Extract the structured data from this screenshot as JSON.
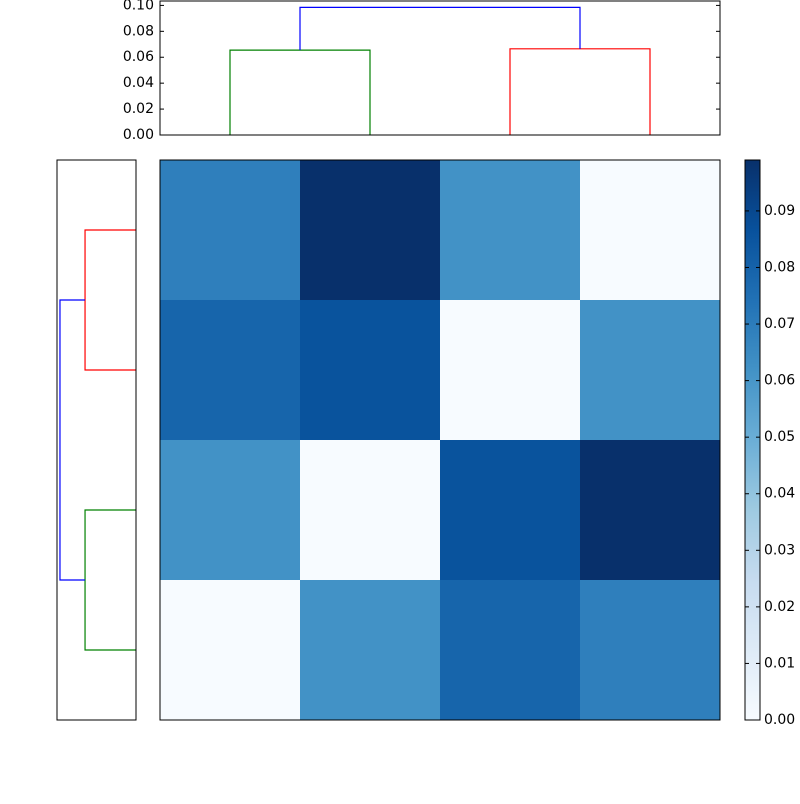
{
  "chart_data": [
    {
      "type": "dendrogram",
      "orientation": "top",
      "links": [
        {
          "children": [
            0,
            1
          ],
          "height": 0.0655,
          "color": "#008000"
        },
        {
          "children": [
            2,
            3
          ],
          "height": 0.0665,
          "color": "#ff0000"
        },
        {
          "children": [
            4,
            5
          ],
          "height": 0.0985,
          "color": "#0000ff"
        }
      ],
      "ylim": [
        0,
        0.1034
      ],
      "yticks": [
        {
          "value": 0,
          "label": "0.00"
        },
        {
          "value": 0.02,
          "label": "0.02"
        },
        {
          "value": 0.04,
          "label": "0.04"
        },
        {
          "value": 0.06,
          "label": "0.06"
        },
        {
          "value": 0.08,
          "label": "0.08"
        },
        {
          "value": 0.1,
          "label": "0.10"
        }
      ]
    },
    {
      "type": "heatmap",
      "colormap": "Blues",
      "values": [
        [
          0.069,
          0.099,
          0.062,
          0
        ],
        [
          0.079,
          0.086,
          0,
          0.062
        ],
        [
          0.062,
          0,
          0.086,
          0.099
        ],
        [
          0,
          0.062,
          0.079,
          0.069
        ]
      ],
      "vlim": [
        0,
        0.099
      ],
      "colorbar_ticks": [
        {
          "value": 0,
          "label": "0.00"
        },
        {
          "value": 0.01,
          "label": "0.01"
        },
        {
          "value": 0.02,
          "label": "0.02"
        },
        {
          "value": 0.03,
          "label": "0.03"
        },
        {
          "value": 0.04,
          "label": "0.04"
        },
        {
          "value": 0.05,
          "label": "0.05"
        },
        {
          "value": 0.06,
          "label": "0.06"
        },
        {
          "value": 0.07,
          "label": "0.07"
        },
        {
          "value": 0.08,
          "label": "0.08"
        },
        {
          "value": 0.09,
          "label": "0.09"
        }
      ]
    },
    {
      "type": "dendrogram",
      "orientation": "left",
      "links": [
        {
          "children": [
            0,
            1
          ],
          "height": 0.0667,
          "color": "#ff0000"
        },
        {
          "children": [
            2,
            3
          ],
          "height": 0.0667,
          "color": "#008000"
        },
        {
          "children": [
            4,
            5
          ],
          "height": 0.0995,
          "color": "#0000ff"
        }
      ],
      "xlim": [
        0.1034,
        0
      ]
    }
  ]
}
